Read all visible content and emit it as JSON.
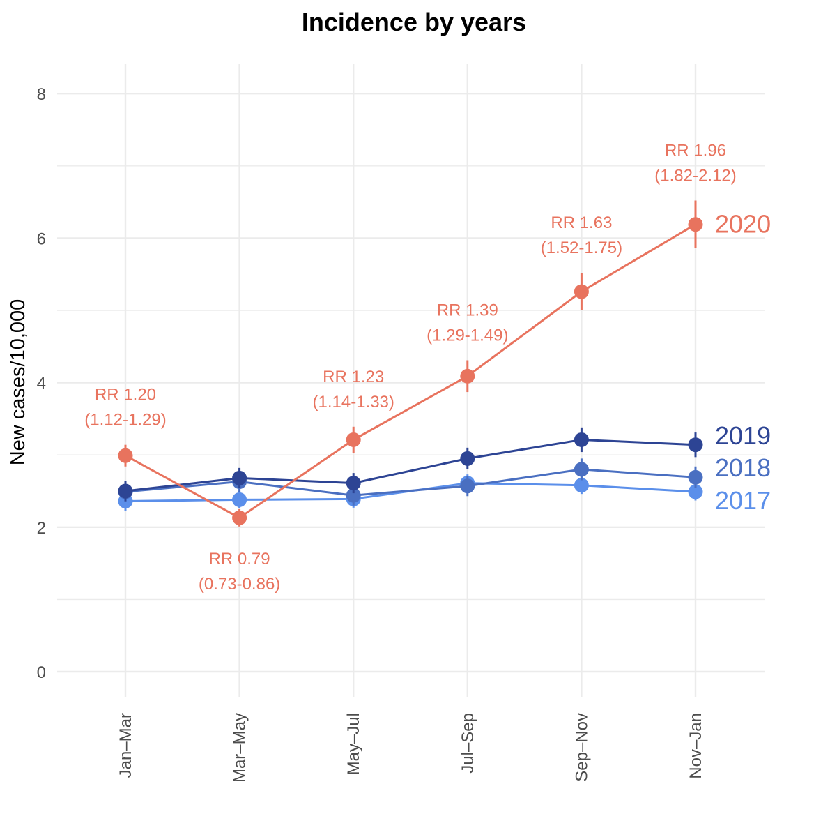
{
  "chart_data": {
    "type": "line",
    "title": "Incidence by years",
    "xlabel": "",
    "ylabel": "New cases/10,000",
    "categories": [
      "Jan–Mar",
      "Mar–May",
      "May–Jul",
      "Jul–Sep",
      "Sep–Nov",
      "Nov–Jan"
    ],
    "ylim": [
      0,
      8
    ],
    "yticks": [
      "0",
      "2",
      "4",
      "6",
      "8"
    ],
    "series": [
      {
        "name": "2017",
        "color": "#5b8fea",
        "values": [
          2.36,
          2.38,
          2.39,
          2.61,
          2.58,
          2.49
        ],
        "ci_halfwidth": [
          0.13,
          0.12,
          0.12,
          0.12,
          0.12,
          0.12
        ]
      },
      {
        "name": "2018",
        "color": "#4a6fc1",
        "values": [
          2.49,
          2.63,
          2.44,
          2.57,
          2.8,
          2.69
        ],
        "ci_halfwidth": [
          0.14,
          0.14,
          0.14,
          0.14,
          0.15,
          0.15
        ]
      },
      {
        "name": "2019",
        "color": "#2d4494",
        "values": [
          2.5,
          2.68,
          2.61,
          2.95,
          3.21,
          3.14
        ],
        "ci_halfwidth": [
          0.14,
          0.14,
          0.14,
          0.15,
          0.17,
          0.17
        ]
      },
      {
        "name": "2020",
        "color": "#e8735e",
        "values": [
          2.99,
          2.13,
          3.21,
          4.09,
          5.26,
          6.19
        ],
        "ci_halfwidth": [
          0.15,
          0.12,
          0.18,
          0.22,
          0.26,
          0.33
        ]
      }
    ],
    "annotations": [
      {
        "category": "Jan–Mar",
        "position": "above",
        "line1": "RR 1.20",
        "line2": "(1.12-1.29)"
      },
      {
        "category": "Mar–May",
        "position": "below",
        "line1": "RR 0.79",
        "line2": "(0.73-0.86)"
      },
      {
        "category": "May–Jul",
        "position": "above",
        "line1": "RR 1.23",
        "line2": "(1.14-1.33)"
      },
      {
        "category": "Jul–Sep",
        "position": "above",
        "line1": "RR 1.39",
        "line2": "(1.29-1.49)"
      },
      {
        "category": "Sep–Nov",
        "position": "above",
        "line1": "RR 1.63",
        "line2": "(1.52-1.75)"
      },
      {
        "category": "Nov–Jan",
        "position": "above",
        "line1": "RR 1.96",
        "line2": "(1.82-2.12)"
      }
    ],
    "annotation_color": "#e8735e",
    "grid": true
  }
}
